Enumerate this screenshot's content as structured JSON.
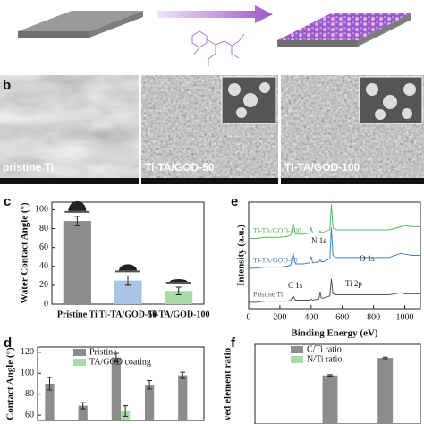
{
  "figure": {
    "panel_labels": [
      "b",
      "c",
      "d",
      "e",
      "f"
    ],
    "image_captions": [
      "pristine Ti",
      "Ti-TA/GOD-50",
      "Ti-TA/GOD-100"
    ]
  },
  "chart_data": [
    {
      "type": "bar",
      "ylabel": "Water Contact Angle (°)",
      "categories": [
        "Pristine Ti",
        "Ti-TA/GOD-50",
        "Ti-TA/GOD-100"
      ],
      "values": [
        88,
        25,
        14
      ],
      "errors": [
        5,
        5,
        4
      ],
      "colors": [
        "#8c8c8c",
        "#a9c4e6",
        "#a8dba8"
      ],
      "ylim": [
        0,
        108
      ],
      "yticks": [
        0,
        20,
        40,
        60,
        80,
        100
      ]
    },
    {
      "type": "line",
      "xlabel": "Binding Energy (eV)",
      "ylabel": "Intensity (a.u.)",
      "x": [
        0,
        50,
        100,
        150,
        200,
        250,
        270,
        285,
        300,
        350,
        390,
        400,
        410,
        450,
        458,
        465,
        480,
        520,
        530,
        540,
        560,
        600,
        700,
        800,
        900,
        975,
        1000,
        1050,
        1100
      ],
      "series": [
        {
          "name": "Pristine Ti",
          "color": "#555555",
          "values": [
            6,
            6,
            7,
            7,
            7,
            7,
            8,
            12,
            8,
            8,
            8,
            9,
            8,
            9,
            16,
            10,
            10,
            12,
            28,
            14,
            13,
            13,
            13,
            13,
            13,
            15,
            14,
            14,
            14
          ]
        },
        {
          "name": "Ti-TA/GOD-50",
          "color": "#4a7fc1",
          "values": [
            38,
            38,
            39,
            39,
            39,
            40,
            41,
            52,
            42,
            42,
            43,
            49,
            43,
            44,
            46,
            44,
            44,
            47,
            76,
            50,
            48,
            48,
            48,
            48,
            48,
            52,
            51,
            50,
            50
          ]
        },
        {
          "name": "Ti-TA/GOD-100",
          "color": "#5cb85c",
          "values": [
            66,
            66,
            67,
            67,
            67,
            68,
            69,
            80,
            70,
            70,
            71,
            76,
            71,
            71,
            73,
            71,
            72,
            74,
            98,
            76,
            74,
            74,
            74,
            74,
            74,
            77,
            78,
            77,
            77
          ]
        }
      ],
      "annotations": [
        "C 1s",
        "N 1s",
        "Ti 2p",
        "O 1s"
      ],
      "xlim": [
        0,
        1100
      ],
      "xticks": [
        0,
        200,
        400,
        600,
        800,
        1000
      ],
      "ylim": [
        0,
        100
      ]
    },
    {
      "type": "bar",
      "ylabel": "Contact Angle (°)",
      "categories": [
        null,
        null,
        null,
        null,
        null
      ],
      "series": [
        {
          "name": "Pristine",
          "color": "#8c8c8c",
          "values": [
            90,
            69,
            115,
            89,
            98
          ],
          "errors": [
            6,
            3,
            4,
            4,
            3
          ]
        },
        {
          "name": "TA/GOD coating",
          "color": "#a8dba8",
          "values": [
            null,
            null,
            64,
            null,
            null
          ],
          "errors": [
            null,
            null,
            5,
            null,
            null
          ]
        }
      ],
      "ylim": [
        55,
        125
      ],
      "yticks": [
        60,
        80,
        100,
        120
      ]
    },
    {
      "type": "bar",
      "ylabel": "ved element ratio",
      "categories": [
        null,
        null,
        null
      ],
      "series": [
        {
          "name": "C/Ti ratio",
          "color": "#8c8c8c",
          "values": [
            null,
            61,
            83
          ],
          "errors": [
            null,
            1,
            1
          ]
        },
        {
          "name": "N/Ti ratio",
          "color": "#a8dba8",
          "values": [
            null,
            null,
            null
          ],
          "errors": [
            null,
            null,
            null
          ]
        }
      ],
      "ylim": [
        0,
        100
      ]
    }
  ]
}
